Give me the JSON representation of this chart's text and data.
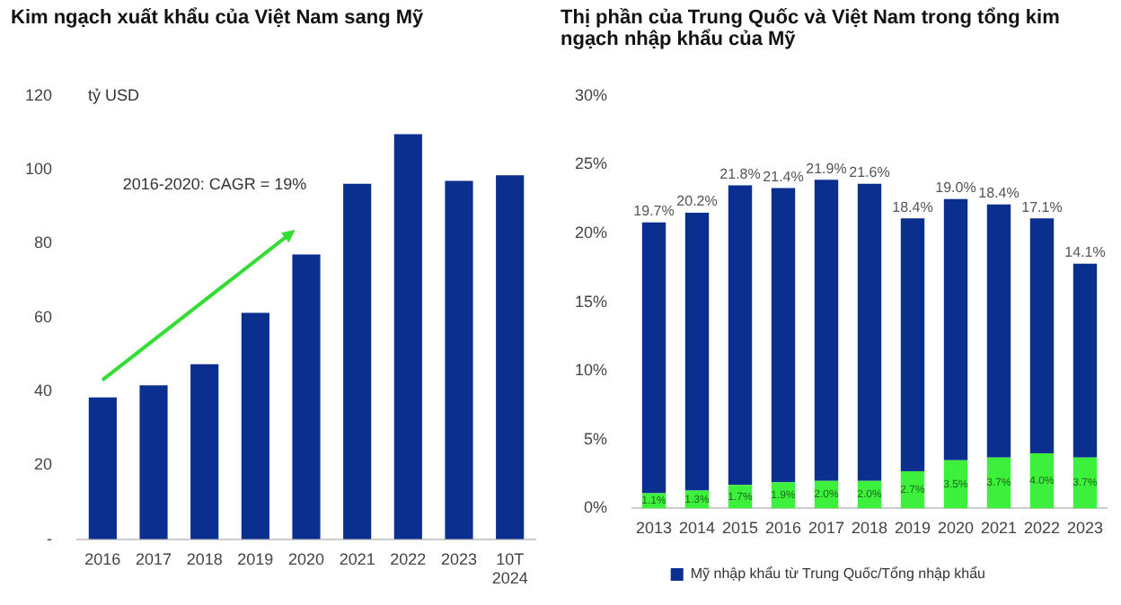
{
  "chart_data": [
    {
      "type": "bar",
      "title": "Kim ngạch xuất khẩu của Việt Nam sang Mỹ",
      "ylabel": "tỷ USD",
      "categories": [
        "2016",
        "2017",
        "2018",
        "2019",
        "2020",
        "2021",
        "2022",
        "2023",
        "10T 2024"
      ],
      "series": [
        {
          "color": "#0b2f8f",
          "values": [
            38.4,
            41.7,
            47.4,
            61.3,
            77.1,
            96.2,
            109.6,
            97.0,
            98.5
          ]
        }
      ],
      "ylim": [
        0,
        120
      ],
      "yticks": [
        {
          "value": 0,
          "label": "-"
        },
        20,
        40,
        60,
        80,
        100,
        120
      ],
      "grid": false,
      "legend": false,
      "annotations": [
        "2016-2020: CAGR = 19%"
      ]
    },
    {
      "type": "bar",
      "title": "Thị phần của Trung Quốc và Việt Nam trong tổng kim ngạch nhập khẩu của Mỹ",
      "categories": [
        "2013",
        "2014",
        "2015",
        "2016",
        "2017",
        "2018",
        "2019",
        "2020",
        "2021",
        "2022",
        "2023"
      ],
      "stacked": true,
      "series": [
        {
          "color": "#3cf03c",
          "values": [
            1.1,
            1.3,
            1.7,
            1.9,
            2.0,
            2.0,
            2.7,
            3.5,
            3.7,
            4.0,
            3.7
          ],
          "value_labels": [
            "1.1%",
            "1.3%",
            "1.7%",
            "1.9%",
            "2.0%",
            "2.0%",
            "2.7%",
            "3.5%",
            "3.7%",
            "4.0%",
            "3.7%"
          ]
        },
        {
          "name": "Mỹ nhập khẩu từ Trung Quốc/Tổng nhập khẩu",
          "color": "#0b2f8f",
          "values": [
            19.7,
            20.2,
            21.8,
            21.4,
            21.9,
            21.6,
            18.4,
            19.0,
            18.4,
            17.1,
            14.1
          ],
          "value_labels": [
            "19.7%",
            "20.2%",
            "21.8%",
            "21.4%",
            "21.9%",
            "21.6%",
            "18.4%",
            "19.0%",
            "18.4%",
            "17.1%",
            "14.1%"
          ]
        }
      ],
      "ylim": [
        0,
        30
      ],
      "yticks": [
        {
          "value": 0,
          "label": "0%"
        },
        {
          "value": 5,
          "label": "5%"
        },
        {
          "value": 10,
          "label": "10%"
        },
        {
          "value": 15,
          "label": "15%"
        },
        {
          "value": 20,
          "label": "20%"
        },
        {
          "value": 25,
          "label": "25%"
        },
        {
          "value": 30,
          "label": "30%"
        }
      ],
      "grid": false,
      "legend": "bottom"
    }
  ]
}
